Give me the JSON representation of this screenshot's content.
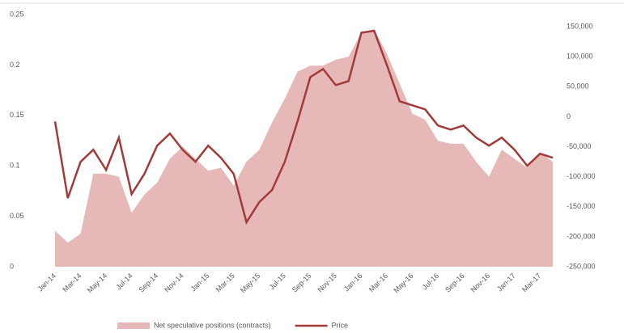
{
  "chart_data": {
    "type": "area_line",
    "categories": [
      "Jan-14",
      null,
      "Mar-14",
      null,
      "May-14",
      null,
      "Jul-14",
      null,
      "Sep-14",
      null,
      "Nov-14",
      null,
      "Jan-15",
      null,
      "Mar-15",
      null,
      "May-15",
      null,
      "Jul-15",
      null,
      "Sep-15",
      null,
      "Nov-15",
      null,
      "Jan-16",
      null,
      "Mar-16",
      null,
      "May-16",
      null,
      "Jul-16",
      null,
      "Sep-16",
      null,
      "Nov-16",
      null,
      "Jan-17",
      null,
      "Mar-17",
      null
    ],
    "series": [
      {
        "name": "Net speculative positions (contracts)",
        "color": "#e6b9b8",
        "axis": "y2",
        "values": [
          -190000,
          -210000,
          -195000,
          -95000,
          -95000,
          -100000,
          -160000,
          -130000,
          -110000,
          -70000,
          -50000,
          -70000,
          -90000,
          -85000,
          -115000,
          -75000,
          -55000,
          -10000,
          30000,
          75000,
          85000,
          85000,
          95000,
          100000,
          140000,
          145000,
          105000,
          55000,
          5000,
          -5000,
          -40000,
          -45000,
          -45000,
          -75000,
          -100000,
          -55000,
          -70000,
          -85000,
          -60000,
          -75000
        ]
      },
      {
        "name": "Price",
        "color": "#a33a3a",
        "values": [
          0.144,
          0.068,
          0.104,
          0.116,
          0.096,
          0.128,
          0.072,
          0.092,
          0.12,
          0.132,
          0.116,
          0.104,
          0.12,
          0.108,
          0.092,
          0.044,
          0.064,
          0.076,
          0.104,
          0.144,
          0.188,
          0.196,
          0.18,
          0.184,
          0.232,
          0.234,
          0.2,
          0.164,
          0.16,
          0.156,
          0.14,
          0.136,
          0.14,
          0.128,
          0.12,
          0.128,
          0.116,
          0.1,
          0.112,
          0.108
        ]
      }
    ],
    "ylim": [
      0,
      0.25
    ],
    "yticks": [
      0,
      0.05,
      0.1,
      0.15,
      0.2,
      0.25
    ],
    "y2lim": [
      -250000,
      150000
    ],
    "y2ticks": [
      {
        "value": -250000,
        "label": "-250,000"
      },
      {
        "value": -200000,
        "label": "-200,000"
      },
      {
        "value": -150000,
        "label": "-150,000"
      },
      {
        "value": -100000,
        "label": "-100,000"
      },
      {
        "value": -50000,
        "label": "-50,000"
      },
      0,
      {
        "value": 50000,
        "label": "50,000"
      },
      {
        "value": 100000,
        "label": "100,000"
      },
      {
        "value": 150000,
        "label": "150,000"
      }
    ],
    "legend": "bottom"
  }
}
